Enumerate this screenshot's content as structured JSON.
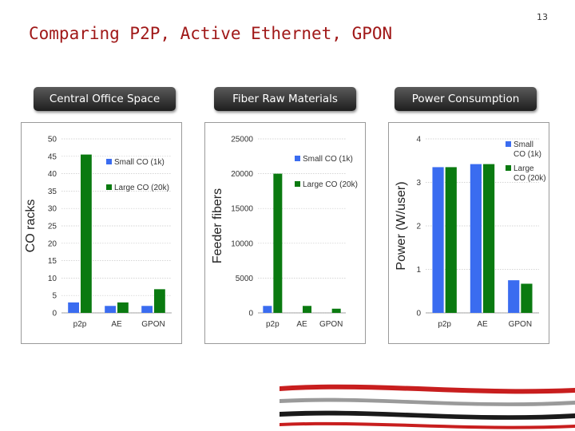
{
  "slide": {
    "title": "Comparing P2P, Active Ethernet, GPON",
    "number": "13"
  },
  "panels": [
    {
      "heading": "Central Office Space"
    },
    {
      "heading": "Fiber Raw Materials"
    },
    {
      "heading": "Power Consumption"
    }
  ],
  "colors": {
    "small_co": "#3a6cf0",
    "large_co": "#0a7a10",
    "title": "#a01818"
  },
  "chart_data": [
    {
      "type": "bar",
      "categories": [
        "p2p",
        "AE",
        "GPON"
      ],
      "series": [
        {
          "name": "Small CO (1k)",
          "values": [
            3,
            2,
            2
          ]
        },
        {
          "name": "Large CO (20k)",
          "values": [
            45.5,
            3,
            6.8
          ]
        }
      ],
      "ylabel": "CO racks",
      "ylim": [
        0,
        50
      ],
      "yticks": [
        "0",
        "5",
        "10",
        "15",
        "20",
        "25",
        "30",
        "35",
        "40",
        "45",
        "50"
      ],
      "grid": true,
      "legend_position": "right"
    },
    {
      "type": "bar",
      "categories": [
        "p2p",
        "AE",
        "GPON"
      ],
      "series": [
        {
          "name": "Small CO (1k)",
          "values": [
            1000,
            0,
            0
          ]
        },
        {
          "name": "Large CO (20k)",
          "values": [
            20000,
            1000,
            600
          ]
        }
      ],
      "ylabel": "Feeder fibers",
      "ylim": [
        0,
        25000
      ],
      "yticks": [
        "0",
        "5000",
        "10000",
        "15000",
        "20000",
        "25000"
      ],
      "grid": true,
      "legend_position": "right"
    },
    {
      "type": "bar",
      "categories": [
        "p2p",
        "AE",
        "GPON"
      ],
      "series": [
        {
          "name": "Small CO (1k)",
          "values": [
            3.35,
            3.42,
            0.75
          ]
        },
        {
          "name": "Large CO (20k)",
          "values": [
            3.35,
            3.42,
            0.67
          ]
        }
      ],
      "ylabel": "Power (W/user)",
      "ylim": [
        0,
        4
      ],
      "yticks": [
        "0",
        "1",
        "2",
        "3",
        "4"
      ],
      "grid": true,
      "legend_position": "right"
    }
  ]
}
